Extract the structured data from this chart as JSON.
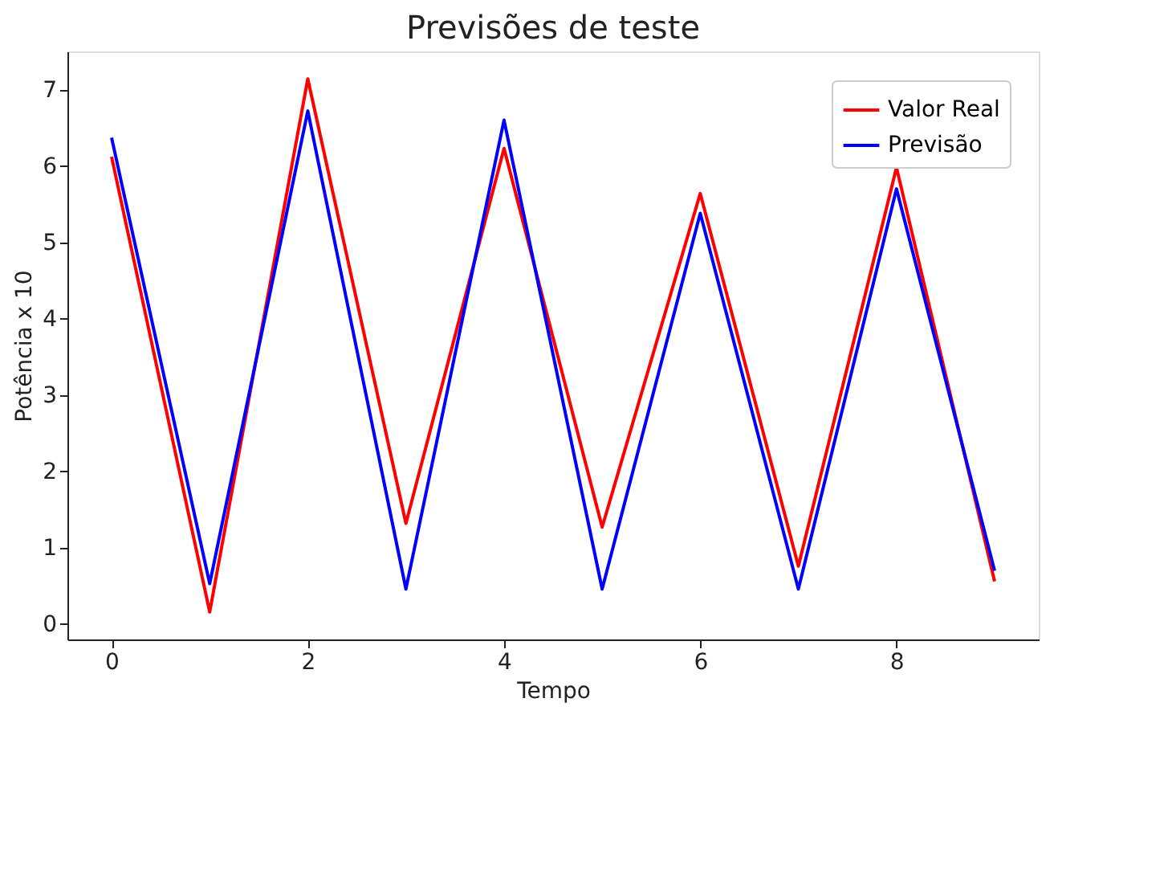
{
  "chart_data": {
    "type": "line",
    "title": "Previsões de teste",
    "xlabel": "Tempo",
    "ylabel": "Potência x 10",
    "x": [
      0,
      1,
      2,
      3,
      4,
      5,
      6,
      7,
      8,
      9
    ],
    "series": [
      {
        "name": "Valor Real",
        "color": "#ff0000",
        "values": [
          6.12,
          0.16,
          7.14,
          1.32,
          6.23,
          1.27,
          5.64,
          0.76,
          5.98,
          0.56
        ]
      },
      {
        "name": "Previsão",
        "color": "#0000ff",
        "values": [
          6.37,
          0.53,
          6.72,
          0.46,
          6.6,
          0.46,
          5.38,
          0.46,
          5.7,
          0.7
        ]
      }
    ],
    "xlim": [
      -0.45,
      9.45
    ],
    "xticks": [
      0,
      2,
      4,
      6,
      8
    ],
    "ylim": [
      -0.2,
      7.5
    ],
    "yticks": [
      0,
      1,
      2,
      3,
      4,
      5,
      6,
      7
    ],
    "grid": false,
    "legend": "top right",
    "marker": "none",
    "line_style": "solid"
  }
}
